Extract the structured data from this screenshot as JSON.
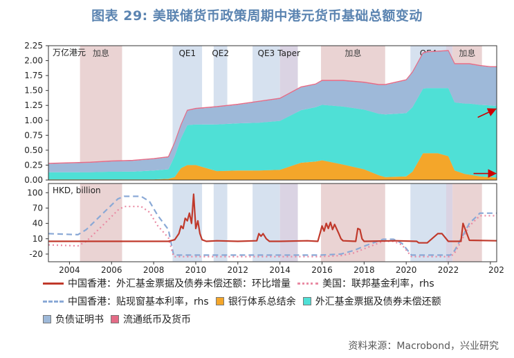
{
  "figure_title": "图表 29: 美联储货币政策周期中港元货币基础总额变动",
  "source": "资料来源：Macrobond，兴业研究",
  "colors": {
    "hike": "#ead3d3",
    "qe": "#d6e1ef",
    "taper": "#dad3e3",
    "liabilities": "#9eb9d9",
    "exchange_fund": "#4fe0d6",
    "bank_balance": "#f4a62a",
    "mom_change": "#c0392b",
    "us_rate": "#e98aa3",
    "hk_rate": "#8aa9d6",
    "currency": "#e46b86",
    "arrow": "#cc0000"
  },
  "chart_data": [
    {
      "type": "area",
      "unit_label": "万亿港元",
      "ylim": [
        0,
        2.25
      ],
      "yticks": [
        "0.00",
        "0.25",
        "0.50",
        "0.75",
        "1.00",
        "1.25",
        "1.50",
        "1.75",
        "2.00",
        "2.25"
      ],
      "xlim": [
        2003.0,
        2024.3
      ],
      "x": [
        2003.0,
        2004.0,
        2005.0,
        2006.0,
        2007.0,
        2008.0,
        2008.7,
        2009.0,
        2009.3,
        2009.6,
        2010.0,
        2011.0,
        2012.0,
        2013.0,
        2014.0,
        2015.0,
        2015.7,
        2016.0,
        2017.0,
        2018.0,
        2018.7,
        2019.0,
        2020.0,
        2020.3,
        2020.8,
        2021.0,
        2021.5,
        2022.0,
        2022.3,
        2022.8,
        2023.0,
        2023.5,
        2024.0,
        2024.3
      ],
      "series": [
        {
          "name": "银行体系总结余",
          "values": [
            0.01,
            0.01,
            0.01,
            0.01,
            0.01,
            0.01,
            0.02,
            0.05,
            0.2,
            0.25,
            0.25,
            0.15,
            0.16,
            0.16,
            0.17,
            0.29,
            0.31,
            0.33,
            0.26,
            0.18,
            0.08,
            0.05,
            0.06,
            0.14,
            0.45,
            0.45,
            0.45,
            0.4,
            0.16,
            0.1,
            0.09,
            0.06,
            0.05,
            0.04
          ]
        },
        {
          "name": "外汇基金票据及债券未偿还额",
          "values": [
            0.12,
            0.12,
            0.12,
            0.13,
            0.13,
            0.15,
            0.16,
            0.35,
            0.5,
            0.67,
            0.68,
            0.78,
            0.79,
            0.8,
            0.82,
            0.88,
            0.91,
            0.93,
            0.97,
            1.0,
            1.03,
            1.05,
            1.06,
            1.08,
            1.08,
            1.09,
            1.09,
            1.14,
            1.14,
            1.18,
            1.19,
            1.2,
            1.2,
            1.2
          ]
        },
        {
          "name": "负债证明书",
          "values": [
            0.14,
            0.15,
            0.16,
            0.17,
            0.18,
            0.19,
            0.2,
            0.22,
            0.22,
            0.24,
            0.26,
            0.29,
            0.31,
            0.35,
            0.37,
            0.38,
            0.38,
            0.4,
            0.43,
            0.45,
            0.48,
            0.49,
            0.55,
            0.58,
            0.59,
            0.6,
            0.61,
            0.62,
            0.64,
            0.66,
            0.66,
            0.65,
            0.64,
            0.65
          ]
        },
        {
          "name": "流通纸币及货币",
          "values": [
            0.01,
            0.01,
            0.01,
            0.01,
            0.01,
            0.01,
            0.01,
            0.01,
            0.01,
            0.01,
            0.01,
            0.01,
            0.01,
            0.01,
            0.01,
            0.01,
            0.01,
            0.01,
            0.01,
            0.01,
            0.01,
            0.01,
            0.01,
            0.01,
            0.01,
            0.01,
            0.01,
            0.01,
            0.01,
            0.01,
            0.01,
            0.01,
            0.01,
            0.01
          ]
        }
      ],
      "bands": [
        {
          "label": "加息",
          "kind": "hike",
          "from": 2004.5,
          "to": 2006.5
        },
        {
          "label": "QE1",
          "kind": "qe",
          "from": 2008.9,
          "to": 2010.3
        },
        {
          "label": "QE2",
          "kind": "qe",
          "from": 2010.85,
          "to": 2011.5
        },
        {
          "label": "QE3",
          "kind": "qe",
          "from": 2012.7,
          "to": 2014.0
        },
        {
          "label": "Taper",
          "kind": "taper",
          "from": 2014.0,
          "to": 2014.85
        },
        {
          "label": "加息",
          "kind": "hike",
          "from": 2015.95,
          "to": 2019.0
        },
        {
          "label": "QE4",
          "kind": "qe",
          "from": 2020.2,
          "to": 2021.9
        },
        {
          "label": "",
          "kind": "taper",
          "from": 2021.9,
          "to": 2022.2
        },
        {
          "label": "加息",
          "kind": "hike",
          "from": 2022.2,
          "to": 2023.6
        }
      ],
      "arrows": [
        {
          "from": [
            2023.4,
            1.05
          ],
          "to": [
            2024.25,
            1.19
          ]
        },
        {
          "from": [
            2023.2,
            0.11
          ],
          "to": [
            2024.25,
            0.11
          ]
        }
      ]
    },
    {
      "type": "line",
      "unit_label": "HKD, billion",
      "yticks": [
        "-20",
        "10",
        "40",
        "70",
        "100"
      ],
      "ylim": [
        -35,
        118
      ],
      "xlim": [
        2003.0,
        2024.3
      ],
      "xticks": [
        "2004",
        "2006",
        "2008",
        "2010",
        "2012",
        "2014",
        "2016",
        "2018",
        "2020",
        "2022",
        "202"
      ],
      "series": [
        {
          "name": "中国香港：外汇基金票据及债券未偿还额：环比增量",
          "x": [
            2003.0,
            2008.7,
            2009.0,
            2009.2,
            2009.3,
            2009.4,
            2009.5,
            2009.6,
            2009.7,
            2009.8,
            2009.9,
            2010.0,
            2010.1,
            2010.2,
            2010.3,
            2010.5,
            2011.0,
            2012.0,
            2012.9,
            2013.0,
            2013.1,
            2013.2,
            2013.35,
            2013.5,
            2013.7,
            2014.0,
            2015.3,
            2015.8,
            2015.9,
            2016.0,
            2016.1,
            2016.2,
            2016.3,
            2016.4,
            2016.5,
            2016.6,
            2016.8,
            2016.9,
            2017.0,
            2017.6,
            2017.7,
            2017.8,
            2017.9,
            2018.0,
            2019.5,
            2020.5,
            2020.6,
            2021.0,
            2021.5,
            2021.6,
            2021.7,
            2021.8,
            2022.0,
            2022.6,
            2022.7,
            2023.0,
            2024.3
          ],
          "values": [
            5,
            5,
            8,
            20,
            35,
            30,
            50,
            45,
            60,
            40,
            97,
            30,
            45,
            20,
            8,
            5,
            6,
            5,
            6,
            20,
            15,
            20,
            10,
            5,
            5,
            5,
            6,
            5,
            20,
            35,
            25,
            40,
            30,
            42,
            28,
            38,
            20,
            10,
            6,
            5,
            30,
            28,
            10,
            5,
            6,
            5,
            2,
            2,
            20,
            20,
            20,
            15,
            5,
            5,
            40,
            7,
            6
          ]
        },
        {
          "name": "美国：联邦基金利率，rhs",
          "x": [
            2003.0,
            2004.4,
            2004.8,
            2005.3,
            2005.8,
            2006.3,
            2006.6,
            2007.4,
            2007.8,
            2008.2,
            2008.7,
            2008.95,
            2015.9,
            2016.9,
            2017.5,
            2018.1,
            2018.9,
            2019.4,
            2019.8,
            2020.25,
            2022.1,
            2022.3,
            2022.7,
            2023.0,
            2023.5,
            2024.3
          ],
          "values": [
            -2,
            -4,
            5,
            25,
            45,
            66,
            73,
            73,
            62,
            35,
            12,
            -25,
            -25,
            -23,
            -18,
            -8,
            5,
            5,
            -2,
            -25,
            -25,
            -18,
            12,
            35,
            55,
            55
          ]
        },
        {
          "name": "中国香港：贴现窗基本利率，rhs",
          "x": [
            2003.0,
            2004.4,
            2004.8,
            2005.3,
            2005.8,
            2006.3,
            2006.6,
            2007.4,
            2007.8,
            2008.2,
            2008.7,
            2008.95,
            2015.9,
            2016.9,
            2017.5,
            2018.1,
            2018.9,
            2019.4,
            2019.8,
            2020.25,
            2022.1,
            2022.3,
            2022.7,
            2023.0,
            2023.5,
            2024.3
          ],
          "values": [
            20,
            18,
            28,
            48,
            68,
            88,
            93,
            93,
            83,
            55,
            28,
            -22,
            -22,
            -20,
            -13,
            -3,
            9,
            9,
            1,
            -22,
            -22,
            -13,
            17,
            40,
            60,
            60
          ]
        }
      ]
    }
  ]
}
